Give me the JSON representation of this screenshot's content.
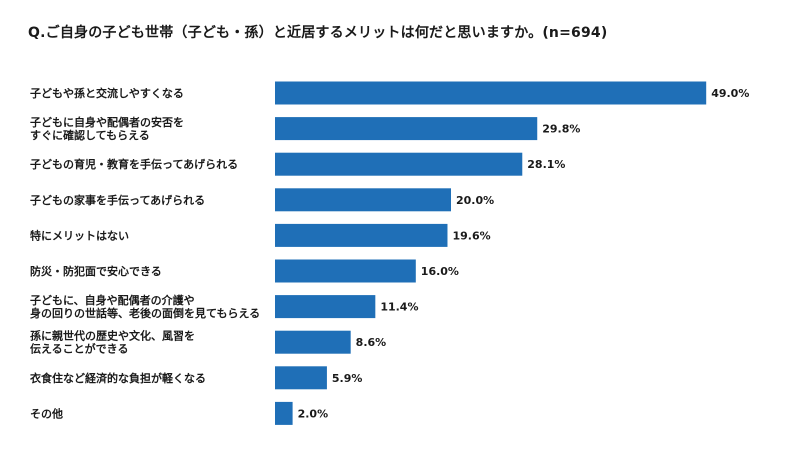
{
  "chart_data": {
    "type": "bar",
    "orientation": "horizontal",
    "title": "Q.ご自身の子ども世帯（子ども・孫）と近居するメリットは何だと思いますか。(n=694)",
    "categories": [
      [
        "子どもや孫と交流しやすくなる"
      ],
      [
        "子どもに自身や配偶者の安否を",
        "すぐに確認してもらえる"
      ],
      [
        "子どもの育児・教育を手伝ってあげられる"
      ],
      [
        "子どもの家事を手伝ってあげられる"
      ],
      [
        "特にメリットはない"
      ],
      [
        "防災・防犯面で安心できる"
      ],
      [
        "子どもに、自身や配偶者の介護や",
        "身の回りの世話等、老後の面倒を見てもらえる"
      ],
      [
        "孫に親世代の歴史や文化、風習を",
        "伝えることができる"
      ],
      [
        "衣食住など経済的な負担が軽くなる"
      ],
      [
        "その他"
      ]
    ],
    "values": [
      49.0,
      29.8,
      28.1,
      20.0,
      19.6,
      16.0,
      11.4,
      8.6,
      5.9,
      2.0
    ],
    "value_labels": [
      "49.0%",
      "29.8%",
      "28.1%",
      "20.0%",
      "19.6%",
      "16.0%",
      "11.4%",
      "8.6%",
      "5.9%",
      "2.0%"
    ],
    "xlim": [
      0,
      50
    ],
    "bar_color": "#1f6fb7",
    "grid": false,
    "legend": "none"
  }
}
